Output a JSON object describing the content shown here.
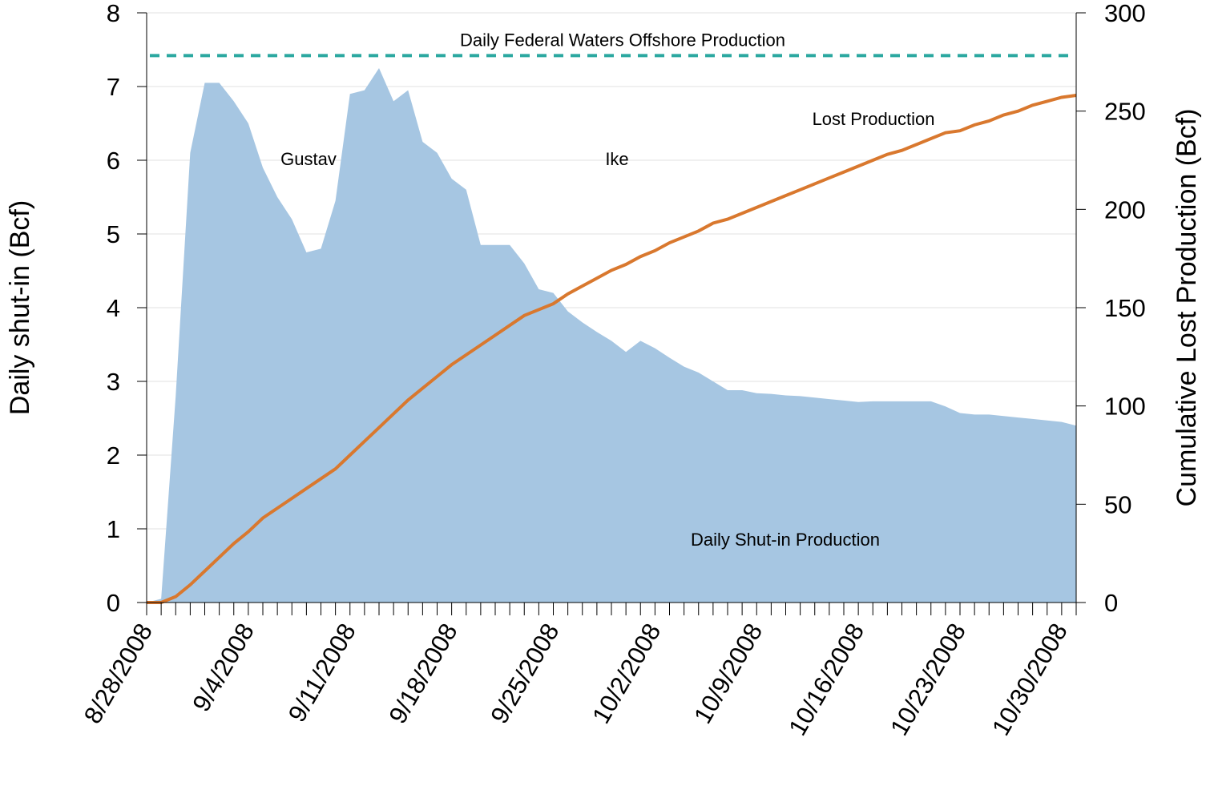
{
  "chart_data": {
    "type": "area_line",
    "x": [
      "8/28/2008",
      null,
      null,
      null,
      null,
      null,
      null,
      "9/4/2008",
      null,
      null,
      null,
      null,
      null,
      null,
      "9/11/2008",
      null,
      null,
      null,
      null,
      null,
      null,
      "9/18/2008",
      null,
      null,
      null,
      null,
      null,
      null,
      "9/25/2008",
      null,
      null,
      null,
      null,
      null,
      null,
      "10/2/2008",
      null,
      null,
      null,
      null,
      null,
      null,
      "10/9/2008",
      null,
      null,
      null,
      null,
      null,
      null,
      "10/16/2008",
      null,
      null,
      null,
      null,
      null,
      null,
      "10/23/2008",
      null,
      null,
      null,
      null,
      null,
      null,
      "10/30/2008",
      null
    ],
    "series": [
      {
        "name": "Daily Shut-in Production",
        "color": "#a6c6e2",
        "axis": "y",
        "values": [
          0,
          0.05,
          2.8,
          6.1,
          7.05,
          7.05,
          6.8,
          6.5,
          5.9,
          5.5,
          5.2,
          4.75,
          4.8,
          5.45,
          6.9,
          6.95,
          7.25,
          6.8,
          6.95,
          6.25,
          6.1,
          5.75,
          5.6,
          4.85,
          4.85,
          4.85,
          4.6,
          4.25,
          4.2,
          3.95,
          3.8,
          3.67,
          3.55,
          3.4,
          3.55,
          3.45,
          3.32,
          3.2,
          3.12,
          3.0,
          2.88,
          2.88,
          2.84,
          2.83,
          2.81,
          2.8,
          2.78,
          2.76,
          2.74,
          2.72,
          2.73,
          2.73,
          2.73,
          2.73,
          2.73,
          2.66,
          2.57,
          2.55,
          2.55,
          2.53,
          2.51,
          2.49,
          2.47,
          2.45,
          2.4
        ]
      },
      {
        "name": "Lost Production",
        "color": "#d9782e",
        "axis": "y2",
        "values": [
          0,
          0,
          3,
          9,
          16,
          23,
          30,
          36,
          43,
          48,
          53,
          58,
          63,
          68,
          75,
          82,
          89,
          96,
          103,
          109,
          115,
          121,
          126,
          131,
          136,
          141,
          146,
          149,
          152,
          157,
          161,
          165,
          169,
          172,
          176,
          179,
          183,
          186,
          189,
          193,
          195,
          198,
          201,
          204,
          207,
          210,
          213,
          216,
          219,
          222,
          225,
          228,
          230,
          233,
          236,
          239,
          240,
          243,
          245,
          248,
          250,
          253,
          255,
          257,
          258
        ]
      }
    ],
    "reference_line": {
      "label": "Daily Federal Waters Offshore Production",
      "value": 7.42,
      "color": "#2ba8a0"
    },
    "annotations": [
      "Gustav",
      "Ike"
    ],
    "ylabel": "Daily shut-in  (Bcf)",
    "y2label": "Cumulative Lost Production   (Bcf)",
    "ylim": [
      0,
      8
    ],
    "yticks": [
      0,
      1,
      2,
      3,
      4,
      5,
      6,
      7,
      8
    ],
    "y2lim": [
      0,
      300
    ],
    "y2ticks": [
      0,
      50,
      100,
      150,
      200,
      250,
      300
    ],
    "grid": true
  }
}
